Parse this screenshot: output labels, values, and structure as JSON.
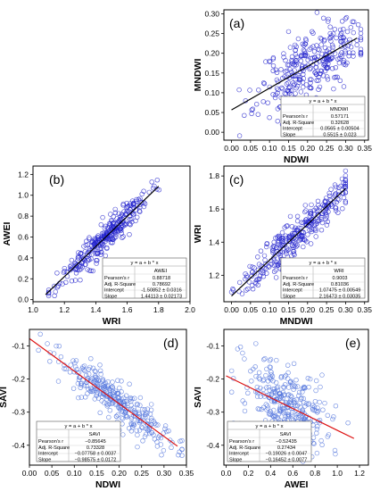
{
  "chart_data": [
    {
      "panel": "(a)",
      "type": "scatter",
      "xlabel": "NDWI",
      "ylabel": "MNDWI",
      "xlim": [
        -0.02,
        0.36
      ],
      "ylim": [
        -0.02,
        0.31
      ],
      "xticks": [
        "0.00",
        "0.05",
        "0.10",
        "0.15",
        "0.20",
        "0.25",
        "0.30",
        "0.35"
      ],
      "xtick_values": [
        0.0,
        0.05,
        0.1,
        0.15,
        0.2,
        0.25,
        0.3,
        0.35
      ],
      "yticks": [
        "0.00",
        "0.05",
        "0.10",
        "0.15",
        "0.20",
        "0.25",
        "0.30"
      ],
      "ytick_values": [
        0.0,
        0.05,
        0.1,
        0.15,
        0.2,
        0.25,
        0.3
      ],
      "scatter_color": "#2222cc",
      "line_color": "#000000",
      "fit": {
        "intercept": 0.0565,
        "slope": 0.5515,
        "x_range": [
          0.0,
          0.33
        ]
      },
      "cloud": {
        "x_center": 0.21,
        "x_spread": 0.07,
        "x_min": 0.02,
        "x_max": 0.34,
        "noise": 0.045,
        "n": 320,
        "seed": 11
      },
      "stats_box": {
        "equation": "y = a + b * x",
        "column_header": "MNDWI",
        "rows": [
          {
            "label": "Pearson's r",
            "value": "0.57171"
          },
          {
            "label": "Adj. R-Square",
            "value": "0.32628"
          },
          {
            "label": "Intercept",
            "value": "0.0565 ± 0.00504"
          },
          {
            "label": "Slope",
            "value": "0.5515 ± 0.023"
          }
        ]
      }
    },
    {
      "panel": "(b)",
      "type": "scatter",
      "xlabel": "WRI",
      "ylabel": "AWEI",
      "xlim": [
        1.0,
        2.0
      ],
      "ylim": [
        -0.02,
        1.28
      ],
      "xticks": [
        "1.0",
        "1.2",
        "1.4",
        "1.6",
        "1.8",
        "2.0"
      ],
      "xtick_values": [
        1.0,
        1.2,
        1.4,
        1.6,
        1.8,
        2.0
      ],
      "yticks": [
        "0.0",
        "0.2",
        "0.4",
        "0.6",
        "0.8",
        "1.0",
        "1.2"
      ],
      "ytick_values": [
        0.0,
        0.2,
        0.4,
        0.6,
        0.8,
        1.0,
        1.2
      ],
      "scatter_color": "#2222cc",
      "line_color": "#000000",
      "fit": {
        "intercept": -1.50852,
        "slope": 1.44113,
        "x_range": [
          1.08,
          1.8
        ]
      },
      "cloud": {
        "x_center": 1.45,
        "x_spread": 0.14,
        "x_min": 1.1,
        "x_max": 1.82,
        "noise": 0.07,
        "n": 320,
        "seed": 23
      },
      "stats_box": {
        "equation": "y = a + b * x",
        "column_header": "AWEI",
        "rows": [
          {
            "label": "Pearson's r",
            "value": "0.88718"
          },
          {
            "label": "Adj. R-Square",
            "value": "0.78692"
          },
          {
            "label": "Intercept",
            "value": "-1.50852 ± 0.0316"
          },
          {
            "label": "Slope",
            "value": "1.44113 ± 0.02173"
          }
        ]
      }
    },
    {
      "panel": "(c)",
      "type": "scatter",
      "xlabel": "MNDWI",
      "ylabel": "WRI",
      "xlim": [
        -0.02,
        0.36
      ],
      "ylim": [
        1.04,
        1.86
      ],
      "xticks": [
        "0.00",
        "0.05",
        "0.10",
        "0.15",
        "0.20",
        "0.25",
        "0.30",
        "0.35"
      ],
      "xtick_values": [
        0.0,
        0.05,
        0.1,
        0.15,
        0.2,
        0.25,
        0.3,
        0.35
      ],
      "yticks": [
        "1.2",
        "1.4",
        "1.6",
        "1.8"
      ],
      "ytick_values": [
        1.2,
        1.4,
        1.6,
        1.8
      ],
      "scatter_color": "#2222cc",
      "line_color": "#000000",
      "fit": {
        "intercept": 1.07475,
        "slope": 2.16473,
        "x_range": [
          0.0,
          0.3
        ]
      },
      "cloud": {
        "x_center": 0.17,
        "x_spread": 0.07,
        "x_min": 0.0,
        "x_max": 0.3,
        "noise": 0.06,
        "n": 320,
        "seed": 37
      },
      "stats_box": {
        "equation": "y = a + b * x",
        "column_header": "WRI",
        "rows": [
          {
            "label": "Pearson's r",
            "value": "0.9003"
          },
          {
            "label": "Adj. R-Square",
            "value": "0.81036"
          },
          {
            "label": "Intercept",
            "value": "1.07475 ± 0.00549"
          },
          {
            "label": "Slope",
            "value": "2.16473 ± 0.03035"
          }
        ]
      }
    },
    {
      "panel": "(d)",
      "type": "scatter",
      "xlabel": "NDWI",
      "ylabel": "SAVI",
      "xlim": [
        0.0,
        0.35
      ],
      "ylim": [
        -0.46,
        -0.05
      ],
      "xticks": [
        "0.00",
        "0.05",
        "0.10",
        "0.15",
        "0.20",
        "0.25",
        "0.30",
        "0.35"
      ],
      "xtick_values": [
        0.0,
        0.05,
        0.1,
        0.15,
        0.2,
        0.25,
        0.3,
        0.35
      ],
      "yticks": [
        "-0.1",
        "-0.2",
        "-0.3",
        "-0.4"
      ],
      "ytick_values": [
        -0.1,
        -0.2,
        -0.3,
        -0.4
      ],
      "scatter_color": "#5577dd",
      "line_color": "#dd1111",
      "fit": {
        "intercept": -0.07758,
        "slope": -0.98575,
        "x_range": [
          0.0,
          0.33
        ]
      },
      "cloud": {
        "x_center": 0.2,
        "x_spread": 0.07,
        "x_min": 0.02,
        "x_max": 0.34,
        "noise": 0.03,
        "n": 320,
        "seed": 53
      },
      "stats_box": {
        "equation": "y = a + b * x",
        "column_header": "SAVI",
        "rows": [
          {
            "label": "Pearson's r",
            "value": "−0.85645"
          },
          {
            "label": "Adj. R-Square",
            "value": "0.73328"
          },
          {
            "label": "Intercept",
            "value": "−0.07758 ± 0.0037"
          },
          {
            "label": "Slope",
            "value": "−0.98575 ± 0.0172"
          }
        ]
      }
    },
    {
      "panel": "(e)",
      "type": "scatter",
      "xlabel": "AWEI",
      "ylabel": "SAVI",
      "xlim": [
        -0.02,
        1.28
      ],
      "ylim": [
        -0.46,
        -0.05
      ],
      "xticks": [
        "0.0",
        "0.2",
        "0.4",
        "0.6",
        "0.8",
        "1.0",
        "1.2"
      ],
      "xtick_values": [
        0.0,
        0.2,
        0.4,
        0.6,
        0.8,
        1.0,
        1.2
      ],
      "yticks": [
        "-0.1",
        "-0.2",
        "-0.3",
        "-0.4"
      ],
      "ytick_values": [
        -0.1,
        -0.2,
        -0.3,
        -0.4
      ],
      "scatter_color": "#5577dd",
      "line_color": "#dd1111",
      "fit": {
        "intercept": -0.19026,
        "slope": -0.16452,
        "x_range": [
          0.0,
          1.15
        ]
      },
      "cloud": {
        "x_center": 0.55,
        "x_spread": 0.2,
        "x_min": 0.05,
        "x_max": 1.15,
        "noise": 0.06,
        "n": 320,
        "seed": 71
      },
      "stats_box": {
        "equation": "y = a + b * x",
        "column_header": "SAVI",
        "rows": [
          {
            "label": "Pearson's r",
            "value": "−0.52435"
          },
          {
            "label": "Adj. R-Square",
            "value": "0.27434"
          },
          {
            "label": "Intercept",
            "value": "−0.19026 ± 0.0047"
          },
          {
            "label": "Slope",
            "value": "−0.16452 ± 0.0077"
          }
        ]
      }
    }
  ]
}
